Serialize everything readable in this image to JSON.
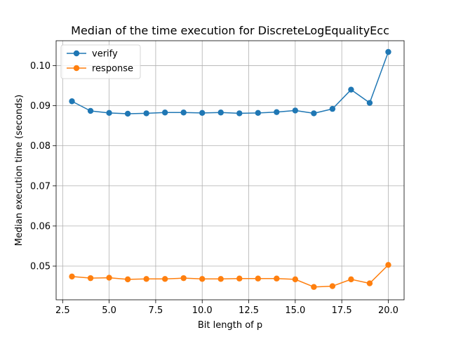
{
  "chart_data": {
    "type": "line",
    "title": "Median of the time execution for DiscreteLogEqualityEcc",
    "xlabel": "Bit length of p",
    "ylabel": "Median execution time (seconds)",
    "xlim": [
      2.15,
      20.85
    ],
    "ylim": [
      0.0416,
      0.1062
    ],
    "xticks": [
      2.5,
      5.0,
      7.5,
      10.0,
      12.5,
      15.0,
      17.5,
      20.0
    ],
    "xtick_labels": [
      "2.5",
      "5.0",
      "7.5",
      "10.0",
      "12.5",
      "15.0",
      "17.5",
      "20.0"
    ],
    "yticks": [
      0.05,
      0.06,
      0.07,
      0.08,
      0.09,
      0.1
    ],
    "ytick_labels": [
      "0.05",
      "0.06",
      "0.07",
      "0.08",
      "0.09",
      "0.10"
    ],
    "grid": true,
    "legend_position": "top-left",
    "x": [
      3,
      4,
      5,
      6,
      7,
      8,
      9,
      10,
      11,
      12,
      13,
      14,
      15,
      16,
      17,
      18,
      19,
      20
    ],
    "series": [
      {
        "name": "verify",
        "color": "#1f77b4",
        "values": [
          0.0911,
          0.0887,
          0.0882,
          0.088,
          0.0881,
          0.0883,
          0.0883,
          0.0882,
          0.0883,
          0.0881,
          0.0882,
          0.0884,
          0.0888,
          0.0881,
          0.0892,
          0.094,
          0.0907,
          0.1034
        ]
      },
      {
        "name": "response",
        "color": "#ff7f0e",
        "values": [
          0.0474,
          0.047,
          0.0471,
          0.0467,
          0.0468,
          0.0468,
          0.047,
          0.0468,
          0.0468,
          0.0469,
          0.0469,
          0.0469,
          0.0467,
          0.0448,
          0.045,
          0.0467,
          0.0457,
          0.0503
        ]
      }
    ]
  }
}
